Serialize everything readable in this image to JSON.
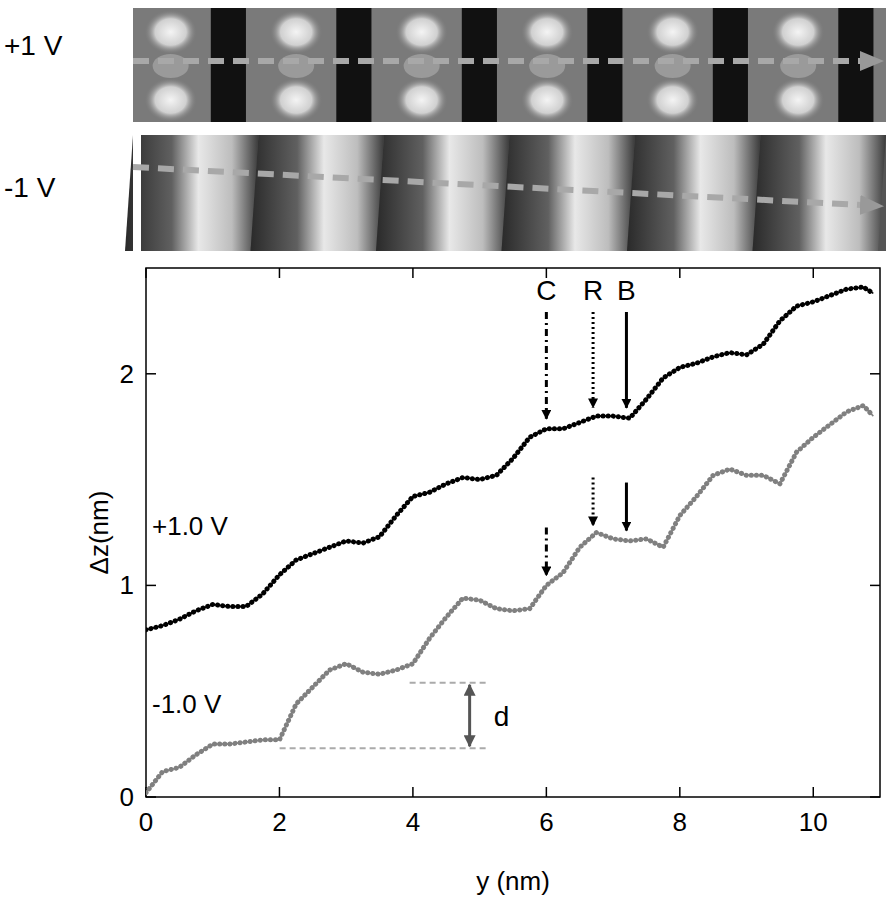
{
  "chart_data": {
    "type": "line",
    "image_labels": [
      "+1 V",
      "-1 V"
    ],
    "x_label": "y (nm)",
    "y_label": "Δz(nm)",
    "xlim": [
      0,
      11
    ],
    "ylim": [
      0,
      2.5
    ],
    "xticks": [
      0,
      2,
      4,
      6,
      8,
      10
    ],
    "yticks": [
      0,
      1,
      2
    ],
    "grid": false,
    "legend": "none",
    "x": [
      0,
      0.25,
      0.5,
      0.75,
      1.0,
      1.25,
      1.5,
      1.75,
      2.0,
      2.25,
      2.5,
      2.75,
      3.0,
      3.25,
      3.5,
      3.75,
      4.0,
      4.25,
      4.5,
      4.75,
      5.0,
      5.25,
      5.5,
      5.75,
      6.0,
      6.25,
      6.5,
      6.75,
      7.0,
      7.25,
      7.5,
      7.75,
      8.0,
      8.25,
      8.5,
      8.75,
      9.0,
      9.25,
      9.5,
      9.75,
      10.0,
      10.25,
      10.5,
      10.75,
      10.9
    ],
    "series": [
      {
        "name": "+1.0 V",
        "color": "#000000",
        "marker": "dot",
        "values": [
          0.79,
          0.81,
          0.84,
          0.88,
          0.91,
          0.9,
          0.9,
          0.96,
          1.05,
          1.12,
          1.15,
          1.18,
          1.21,
          1.2,
          1.23,
          1.33,
          1.42,
          1.44,
          1.48,
          1.51,
          1.5,
          1.52,
          1.6,
          1.7,
          1.74,
          1.74,
          1.77,
          1.8,
          1.8,
          1.79,
          1.88,
          1.98,
          2.03,
          2.05,
          2.08,
          2.1,
          2.09,
          2.14,
          2.25,
          2.32,
          2.34,
          2.37,
          2.4,
          2.41,
          2.38
        ]
      },
      {
        "name": "-1.0 V",
        "color": "#808080",
        "marker": "dot",
        "values": [
          0.02,
          0.12,
          0.14,
          0.2,
          0.25,
          0.25,
          0.26,
          0.27,
          0.27,
          0.44,
          0.52,
          0.6,
          0.63,
          0.59,
          0.58,
          0.6,
          0.63,
          0.75,
          0.85,
          0.94,
          0.93,
          0.89,
          0.88,
          0.89,
          1.0,
          1.06,
          1.18,
          1.25,
          1.22,
          1.21,
          1.22,
          1.18,
          1.33,
          1.42,
          1.52,
          1.55,
          1.52,
          1.52,
          1.48,
          1.63,
          1.7,
          1.76,
          1.82,
          1.85,
          1.8
        ]
      }
    ],
    "annotations": [
      {
        "text": "C",
        "x": 6.0,
        "line_style": "dashdot"
      },
      {
        "text": "R",
        "x": 6.7,
        "line_style": "dotted"
      },
      {
        "text": "B",
        "x": 7.2,
        "line_style": "solid"
      },
      {
        "text": "d",
        "x": 4.85,
        "y": [
          0.23,
          0.54
        ]
      }
    ]
  }
}
